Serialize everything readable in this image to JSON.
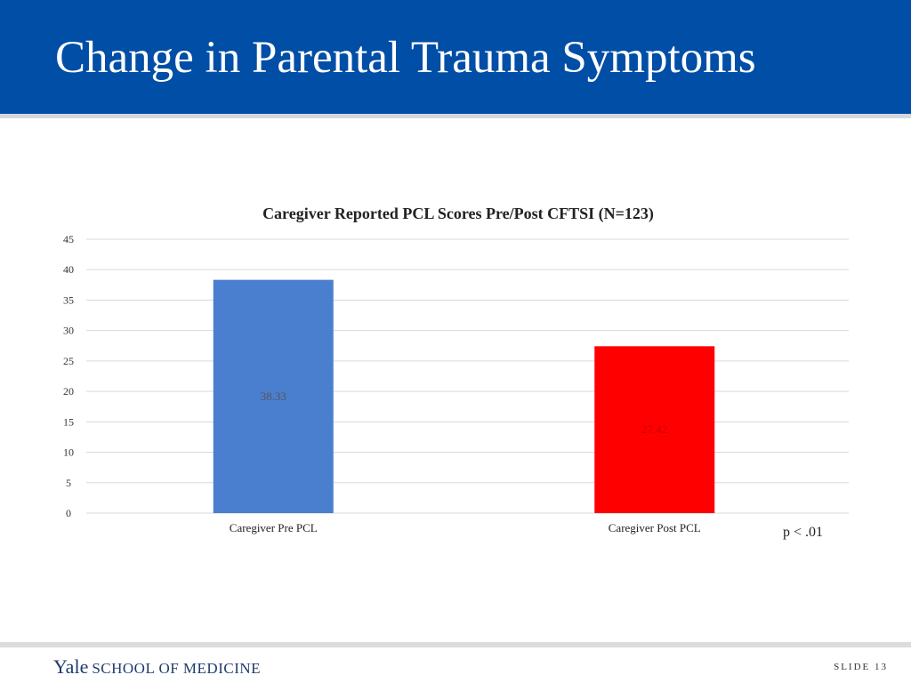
{
  "slide": {
    "title": "Change in Parental Trauma Symptoms",
    "footnote": "p < .01",
    "footer_logo_yale": "Yale",
    "footer_logo_school": "SCHOOL OF MEDICINE",
    "slide_number": "SLIDE 13"
  },
  "colors": {
    "header_bg": "#004ea6",
    "bar_pre": "#4a7fcf",
    "bar_post": "#ff0000"
  },
  "chart_data": {
    "type": "bar",
    "title": "Caregiver Reported PCL Scores Pre/Post CFTSI (N=123)",
    "xlabel": "",
    "ylabel": "",
    "categories": [
      "Caregiver Pre PCL",
      "Caregiver Post PCL"
    ],
    "values": [
      38.33,
      27.42
    ],
    "data_labels": [
      "38.33",
      "27.42"
    ],
    "bar_colors": [
      "#4a7fcf",
      "#ff0000"
    ],
    "ylim": [
      0,
      45
    ],
    "yticks": [
      0,
      5,
      10,
      15,
      20,
      25,
      30,
      35,
      40,
      45
    ],
    "grid": true,
    "legend": "none"
  }
}
